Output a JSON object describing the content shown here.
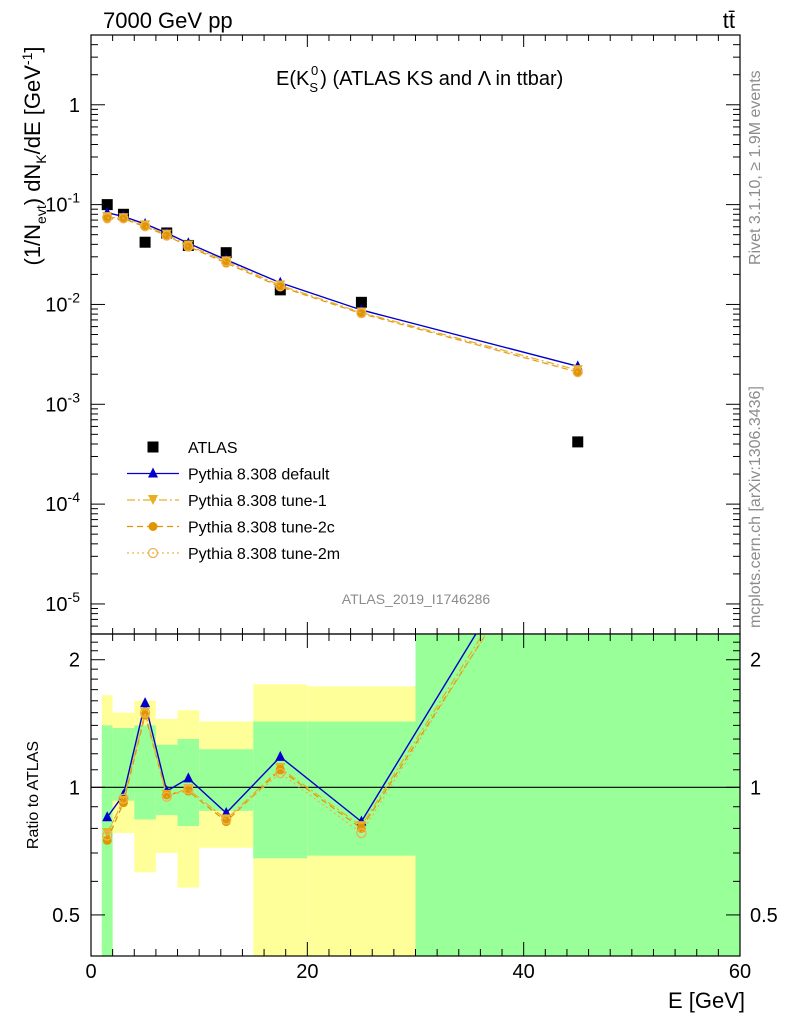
{
  "header": {
    "left": "7000 GeV pp",
    "right": "tt̄"
  },
  "side_text": {
    "rivet": "Rivet 3.1.10, ≥ 1.9M events",
    "mcplots": "mcplots.cern.ch [arXiv:1306.3436]"
  },
  "chart_data": [
    {
      "type": "scatter",
      "panel": "main",
      "title": "E(K_S^0) (ATLAS KS and Λ in ttbar)",
      "title_parts": {
        "prefix": "E(K",
        "sub": "S",
        "sup": "0",
        "suffix": ") (ATLAS KS and Λ in ttbar)"
      },
      "ylabel": "(1/N_evt) dN_K/dE [GeV^-1]",
      "ylabel_parts": {
        "a": "(1/N",
        "a_sub": "evt",
        "b": ") dN",
        "b_sub": "K",
        "c": "/dE [GeV",
        "c_sup": "-1",
        "d": "]"
      },
      "ylog": true,
      "ylim": [
        5e-06,
        5
      ],
      "xlim": [
        0,
        60
      ],
      "ytick_labels": [
        "1",
        "10^-1",
        "10^-2",
        "10^-3",
        "10^-4",
        "10^-5"
      ],
      "ytick_values": [
        1,
        0.1,
        0.01,
        0.001,
        0.0001,
        1e-05
      ],
      "watermark": "ATLAS_2019_I1746286",
      "legend_position": "lower-left",
      "x": [
        1.5,
        3,
        5,
        7,
        9,
        12.5,
        17.5,
        25,
        45
      ],
      "series": [
        {
          "name": "ATLAS",
          "color": "#000000",
          "marker": "square",
          "line": "none",
          "values": [
            0.1,
            0.08,
            0.042,
            0.052,
            0.039,
            0.033,
            0.014,
            0.0105,
            0.00042
          ]
        },
        {
          "name": "Pythia 8.308 default",
          "color": "#0000cc",
          "marker": "triangle-up",
          "line": "solid",
          "values": [
            0.083,
            0.076,
            0.064,
            0.052,
            0.041,
            0.028,
            0.0165,
            0.0088,
            0.0024
          ]
        },
        {
          "name": "Pythia 8.308 tune-1",
          "color": "#e8b020",
          "marker": "triangle-down",
          "line": "dashdot",
          "values": [
            0.075,
            0.073,
            0.062,
            0.05,
            0.039,
            0.027,
            0.0155,
            0.0083,
            0.0022
          ]
        },
        {
          "name": "Pythia 8.308 tune-2c",
          "color": "#e09600",
          "marker": "circle",
          "line": "dashed",
          "values": [
            0.072,
            0.072,
            0.06,
            0.049,
            0.038,
            0.026,
            0.015,
            0.0081,
            0.0021
          ]
        },
        {
          "name": "Pythia 8.308 tune-2m",
          "color": "#f0b050",
          "marker": "circle-open",
          "line": "dotted",
          "values": [
            0.074,
            0.073,
            0.061,
            0.049,
            0.038,
            0.027,
            0.0152,
            0.0082,
            0.0021
          ]
        }
      ]
    },
    {
      "type": "line",
      "panel": "ratio",
      "ylabel": "Ratio to ATLAS",
      "xlabel": "E [GeV]",
      "xlim": [
        0,
        60
      ],
      "ylim": [
        0.4,
        2.3
      ],
      "ylog": true,
      "xtick_labels": [
        "0",
        "20",
        "40",
        "60"
      ],
      "xtick_values": [
        0,
        20,
        40,
        60
      ],
      "ytick_labels": [
        "0.5",
        "1",
        "2"
      ],
      "ytick_values": [
        0.5,
        1,
        2
      ],
      "reference_line": 1,
      "bands": {
        "bin_edges": [
          1,
          2,
          4,
          6,
          8,
          10,
          15,
          20,
          30,
          60
        ],
        "yellow_low": [
          0.36,
          0.78,
          0.63,
          0.7,
          0.58,
          0.72,
          0.4,
          0.4,
          0.4
        ],
        "yellow_high": [
          1.65,
          1.5,
          1.6,
          1.45,
          1.52,
          1.43,
          1.75,
          1.73,
          2.3
        ],
        "green_low": [
          0.36,
          0.93,
          0.84,
          0.86,
          0.81,
          0.88,
          0.68,
          0.69,
          0.4
        ],
        "green_high": [
          1.4,
          1.38,
          1.4,
          1.26,
          1.3,
          1.23,
          1.43,
          1.43,
          2.3
        ],
        "colors": {
          "yellow": "#ffff99",
          "green": "#99ff99"
        }
      },
      "x": [
        1.5,
        3,
        5,
        7,
        9,
        12.5,
        17.5,
        25,
        45
      ],
      "series": [
        {
          "name": "Pythia 8.308 default",
          "color": "#0000cc",
          "marker": "triangle-up",
          "line": "solid",
          "values": [
            0.85,
            0.96,
            1.58,
            0.98,
            1.05,
            0.87,
            1.18,
            0.83,
            5.7
          ]
        },
        {
          "name": "Pythia 8.308 tune-1",
          "color": "#e8b020",
          "marker": "triangle-down",
          "line": "dashdot",
          "values": [
            0.78,
            0.93,
            1.5,
            0.96,
            0.99,
            0.84,
            1.11,
            0.81,
            5.2
          ]
        },
        {
          "name": "Pythia 8.308 tune-2c",
          "color": "#e09600",
          "marker": "circle",
          "line": "dashed",
          "values": [
            0.75,
            0.92,
            1.48,
            0.96,
            0.98,
            0.83,
            1.1,
            0.8,
            5.0
          ]
        },
        {
          "name": "Pythia 8.308 tune-2m",
          "color": "#f0b050",
          "marker": "circle-open",
          "line": "dotted",
          "values": [
            0.77,
            0.94,
            1.5,
            0.95,
            0.99,
            0.84,
            1.08,
            0.78,
            5.1
          ]
        }
      ]
    }
  ]
}
